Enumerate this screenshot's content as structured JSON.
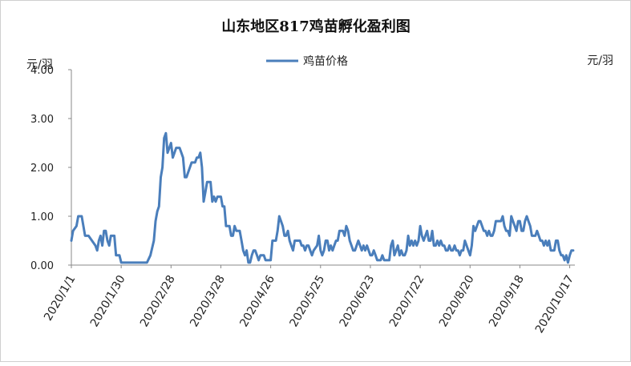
{
  "chart_data": {
    "type": "line",
    "title": "山东地区817鸡苗孵化盈利图",
    "ylabel_left": "元/羽",
    "ylabel_right": "元/羽",
    "ylim": [
      0,
      4
    ],
    "yticks": [
      "0.00",
      "1.00",
      "2.00",
      "3.00",
      "4.00"
    ],
    "grid": false,
    "legend_position": "top",
    "x_tick_labels": [
      "2020/1/1",
      "2020/1/30",
      "2020/2/28",
      "2020/3/28",
      "2020/4/26",
      "2020/5/25",
      "2020/6/23",
      "2020/7/22",
      "2020/8/20",
      "2020/9/18",
      "2020/10/17"
    ],
    "series": [
      {
        "name": "鸡苗价格",
        "color": "#4a7ebb",
        "points": [
          [
            "2020/1/1",
            0.5
          ],
          [
            "2020/1/2",
            0.7
          ],
          [
            "2020/1/4",
            0.8
          ],
          [
            "2020/1/5",
            1.0
          ],
          [
            "2020/1/7",
            1.0
          ],
          [
            "2020/1/9",
            0.6
          ],
          [
            "2020/1/11",
            0.6
          ],
          [
            "2020/1/13",
            0.5
          ],
          [
            "2020/1/15",
            0.4
          ],
          [
            "2020/1/16",
            0.3
          ],
          [
            "2020/1/17",
            0.5
          ],
          [
            "2020/1/18",
            0.6
          ],
          [
            "2020/1/19",
            0.4
          ],
          [
            "2020/1/20",
            0.7
          ],
          [
            "2020/1/21",
            0.7
          ],
          [
            "2020/1/22",
            0.5
          ],
          [
            "2020/1/23",
            0.4
          ],
          [
            "2020/1/24",
            0.6
          ],
          [
            "2020/1/26",
            0.6
          ],
          [
            "2020/1/27",
            0.2
          ],
          [
            "2020/1/29",
            0.2
          ],
          [
            "2020/1/30",
            0.05
          ],
          [
            "2020/2/2",
            0.05
          ],
          [
            "2020/2/6",
            0.05
          ],
          [
            "2020/2/10",
            0.05
          ],
          [
            "2020/2/14",
            0.05
          ],
          [
            "2020/2/16",
            0.2
          ],
          [
            "2020/2/18",
            0.5
          ],
          [
            "2020/2/19",
            0.9
          ],
          [
            "2020/2/20",
            1.1
          ],
          [
            "2020/2/21",
            1.2
          ],
          [
            "2020/2/22",
            1.8
          ],
          [
            "2020/2/23",
            2.0
          ],
          [
            "2020/2/24",
            2.6
          ],
          [
            "2020/2/25",
            2.7
          ],
          [
            "2020/2/26",
            2.3
          ],
          [
            "2020/2/27",
            2.4
          ],
          [
            "2020/2/28",
            2.5
          ],
          [
            "2020/2/29",
            2.2
          ],
          [
            "2020/3/1",
            2.3
          ],
          [
            "2020/3/2",
            2.4
          ],
          [
            "2020/3/4",
            2.4
          ],
          [
            "2020/3/5",
            2.3
          ],
          [
            "2020/3/6",
            2.2
          ],
          [
            "2020/3/7",
            1.8
          ],
          [
            "2020/3/8",
            1.8
          ],
          [
            "2020/3/9",
            1.9
          ],
          [
            "2020/3/11",
            2.1
          ],
          [
            "2020/3/13",
            2.1
          ],
          [
            "2020/3/14",
            2.2
          ],
          [
            "2020/3/15",
            2.2
          ],
          [
            "2020/3/16",
            2.3
          ],
          [
            "2020/3/17",
            2.0
          ],
          [
            "2020/3/18",
            1.3
          ],
          [
            "2020/3/19",
            1.5
          ],
          [
            "2020/3/20",
            1.7
          ],
          [
            "2020/3/22",
            1.7
          ],
          [
            "2020/3/23",
            1.3
          ],
          [
            "2020/3/24",
            1.4
          ],
          [
            "2020/3/25",
            1.3
          ],
          [
            "2020/3/26",
            1.4
          ],
          [
            "2020/3/28",
            1.4
          ],
          [
            "2020/3/29",
            1.2
          ],
          [
            "2020/3/30",
            1.2
          ],
          [
            "2020/3/31",
            0.8
          ],
          [
            "2020/4/2",
            0.8
          ],
          [
            "2020/4/3",
            0.6
          ],
          [
            "2020/4/4",
            0.6
          ],
          [
            "2020/4/5",
            0.8
          ],
          [
            "2020/4/6",
            0.7
          ],
          [
            "2020/4/8",
            0.7
          ],
          [
            "2020/4/9",
            0.5
          ],
          [
            "2020/4/10",
            0.3
          ],
          [
            "2020/4/11",
            0.2
          ],
          [
            "2020/4/12",
            0.3
          ],
          [
            "2020/4/13",
            0.05
          ],
          [
            "2020/4/14",
            0.05
          ],
          [
            "2020/4/15",
            0.2
          ],
          [
            "2020/4/16",
            0.3
          ],
          [
            "2020/4/17",
            0.3
          ],
          [
            "2020/4/18",
            0.2
          ],
          [
            "2020/4/19",
            0.1
          ],
          [
            "2020/4/20",
            0.2
          ],
          [
            "2020/4/21",
            0.2
          ],
          [
            "2020/4/22",
            0.2
          ],
          [
            "2020/4/23",
            0.1
          ],
          [
            "2020/4/26",
            0.1
          ],
          [
            "2020/4/27",
            0.5
          ],
          [
            "2020/4/28",
            0.5
          ],
          [
            "2020/4/29",
            0.5
          ],
          [
            "2020/4/30",
            0.7
          ],
          [
            "2020/5/1",
            1.0
          ],
          [
            "2020/5/2",
            0.9
          ],
          [
            "2020/5/3",
            0.8
          ],
          [
            "2020/5/4",
            0.6
          ],
          [
            "2020/5/5",
            0.6
          ],
          [
            "2020/5/6",
            0.7
          ],
          [
            "2020/5/7",
            0.5
          ],
          [
            "2020/5/8",
            0.4
          ],
          [
            "2020/5/9",
            0.3
          ],
          [
            "2020/5/10",
            0.5
          ],
          [
            "2020/5/13",
            0.5
          ],
          [
            "2020/5/14",
            0.4
          ],
          [
            "2020/5/15",
            0.4
          ],
          [
            "2020/5/16",
            0.3
          ],
          [
            "2020/5/17",
            0.4
          ],
          [
            "2020/5/18",
            0.4
          ],
          [
            "2020/5/19",
            0.3
          ],
          [
            "2020/5/20",
            0.2
          ],
          [
            "2020/5/21",
            0.3
          ],
          [
            "2020/5/23",
            0.4
          ],
          [
            "2020/5/24",
            0.6
          ],
          [
            "2020/5/25",
            0.3
          ],
          [
            "2020/5/26",
            0.2
          ],
          [
            "2020/5/27",
            0.3
          ],
          [
            "2020/5/28",
            0.5
          ],
          [
            "2020/5/29",
            0.5
          ],
          [
            "2020/5/30",
            0.3
          ],
          [
            "2020/5/31",
            0.4
          ],
          [
            "2020/6/1",
            0.3
          ],
          [
            "2020/6/2",
            0.4
          ],
          [
            "2020/6/3",
            0.5
          ],
          [
            "2020/6/4",
            0.5
          ],
          [
            "2020/6/5",
            0.7
          ],
          [
            "2020/6/7",
            0.7
          ],
          [
            "2020/6/8",
            0.6
          ],
          [
            "2020/6/9",
            0.8
          ],
          [
            "2020/6/10",
            0.7
          ],
          [
            "2020/6/11",
            0.5
          ],
          [
            "2020/6/12",
            0.4
          ],
          [
            "2020/6/13",
            0.3
          ],
          [
            "2020/6/14",
            0.3
          ],
          [
            "2020/6/15",
            0.4
          ],
          [
            "2020/6/16",
            0.5
          ],
          [
            "2020/6/17",
            0.4
          ],
          [
            "2020/6/18",
            0.3
          ],
          [
            "2020/6/19",
            0.4
          ],
          [
            "2020/6/20",
            0.3
          ],
          [
            "2020/6/21",
            0.4
          ],
          [
            "2020/6/22",
            0.3
          ],
          [
            "2020/6/23",
            0.2
          ],
          [
            "2020/6/24",
            0.2
          ],
          [
            "2020/6/25",
            0.3
          ],
          [
            "2020/6/26",
            0.2
          ],
          [
            "2020/6/27",
            0.1
          ],
          [
            "2020/6/28",
            0.1
          ],
          [
            "2020/6/29",
            0.1
          ],
          [
            "2020/6/30",
            0.2
          ],
          [
            "2020/7/1",
            0.1
          ],
          [
            "2020/7/2",
            0.1
          ],
          [
            "2020/7/3",
            0.1
          ],
          [
            "2020/7/4",
            0.1
          ],
          [
            "2020/7/5",
            0.4
          ],
          [
            "2020/7/6",
            0.5
          ],
          [
            "2020/7/7",
            0.2
          ],
          [
            "2020/7/8",
            0.3
          ],
          [
            "2020/7/9",
            0.4
          ],
          [
            "2020/7/10",
            0.2
          ],
          [
            "2020/7/11",
            0.3
          ],
          [
            "2020/7/12",
            0.2
          ],
          [
            "2020/7/13",
            0.2
          ],
          [
            "2020/7/14",
            0.3
          ],
          [
            "2020/7/15",
            0.6
          ],
          [
            "2020/7/16",
            0.4
          ],
          [
            "2020/7/17",
            0.5
          ],
          [
            "2020/7/18",
            0.4
          ],
          [
            "2020/7/19",
            0.5
          ],
          [
            "2020/7/20",
            0.4
          ],
          [
            "2020/7/21",
            0.5
          ],
          [
            "2020/7/22",
            0.8
          ],
          [
            "2020/7/23",
            0.6
          ],
          [
            "2020/7/24",
            0.5
          ],
          [
            "2020/7/25",
            0.6
          ],
          [
            "2020/7/26",
            0.7
          ],
          [
            "2020/7/27",
            0.5
          ],
          [
            "2020/7/28",
            0.5
          ],
          [
            "2020/7/29",
            0.7
          ],
          [
            "2020/7/30",
            0.4
          ],
          [
            "2020/7/31",
            0.4
          ],
          [
            "2020/8/1",
            0.5
          ],
          [
            "2020/8/2",
            0.4
          ],
          [
            "2020/8/3",
            0.5
          ],
          [
            "2020/8/4",
            0.4
          ],
          [
            "2020/8/5",
            0.4
          ],
          [
            "2020/8/6",
            0.3
          ],
          [
            "2020/8/7",
            0.3
          ],
          [
            "2020/8/8",
            0.4
          ],
          [
            "2020/8/9",
            0.3
          ],
          [
            "2020/8/10",
            0.3
          ],
          [
            "2020/8/11",
            0.4
          ],
          [
            "2020/8/12",
            0.3
          ],
          [
            "2020/8/13",
            0.3
          ],
          [
            "2020/8/14",
            0.2
          ],
          [
            "2020/8/15",
            0.3
          ],
          [
            "2020/8/16",
            0.3
          ],
          [
            "2020/8/17",
            0.5
          ],
          [
            "2020/8/18",
            0.4
          ],
          [
            "2020/8/19",
            0.3
          ],
          [
            "2020/8/20",
            0.2
          ],
          [
            "2020/8/21",
            0.4
          ],
          [
            "2020/8/22",
            0.8
          ],
          [
            "2020/8/23",
            0.7
          ],
          [
            "2020/8/24",
            0.8
          ],
          [
            "2020/8/25",
            0.9
          ],
          [
            "2020/8/26",
            0.9
          ],
          [
            "2020/8/27",
            0.8
          ],
          [
            "2020/8/28",
            0.7
          ],
          [
            "2020/8/29",
            0.7
          ],
          [
            "2020/8/30",
            0.6
          ],
          [
            "2020/8/31",
            0.7
          ],
          [
            "2020/9/1",
            0.6
          ],
          [
            "2020/9/2",
            0.6
          ],
          [
            "2020/9/3",
            0.7
          ],
          [
            "2020/9/4",
            0.9
          ],
          [
            "2020/9/5",
            0.9
          ],
          [
            "2020/9/7",
            0.9
          ],
          [
            "2020/9/8",
            1.0
          ],
          [
            "2020/9/9",
            0.8
          ],
          [
            "2020/9/10",
            0.7
          ],
          [
            "2020/9/11",
            0.7
          ],
          [
            "2020/9/12",
            0.6
          ],
          [
            "2020/9/13",
            1.0
          ],
          [
            "2020/9/14",
            0.9
          ],
          [
            "2020/9/15",
            0.8
          ],
          [
            "2020/9/16",
            0.7
          ],
          [
            "2020/9/17",
            0.9
          ],
          [
            "2020/9/18",
            0.9
          ],
          [
            "2020/9/19",
            0.7
          ],
          [
            "2020/9/20",
            0.7
          ],
          [
            "2020/9/21",
            0.9
          ],
          [
            "2020/9/22",
            1.0
          ],
          [
            "2020/9/23",
            0.9
          ],
          [
            "2020/9/24",
            0.8
          ],
          [
            "2020/9/25",
            0.6
          ],
          [
            "2020/9/26",
            0.6
          ],
          [
            "2020/9/27",
            0.6
          ],
          [
            "2020/9/28",
            0.7
          ],
          [
            "2020/9/29",
            0.6
          ],
          [
            "2020/9/30",
            0.5
          ],
          [
            "2020/10/1",
            0.5
          ],
          [
            "2020/10/2",
            0.4
          ],
          [
            "2020/10/3",
            0.5
          ],
          [
            "2020/10/4",
            0.4
          ],
          [
            "2020/10/5",
            0.5
          ],
          [
            "2020/10/6",
            0.3
          ],
          [
            "2020/10/7",
            0.3
          ],
          [
            "2020/10/8",
            0.3
          ],
          [
            "2020/10/9",
            0.5
          ],
          [
            "2020/10/10",
            0.5
          ],
          [
            "2020/10/11",
            0.3
          ],
          [
            "2020/10/12",
            0.2
          ],
          [
            "2020/10/13",
            0.2
          ],
          [
            "2020/10/14",
            0.1
          ],
          [
            "2020/10/15",
            0.2
          ],
          [
            "2020/10/16",
            0.05
          ],
          [
            "2020/10/17",
            0.2
          ],
          [
            "2020/10/18",
            0.3
          ],
          [
            "2020/10/19",
            0.3
          ]
        ]
      }
    ]
  }
}
